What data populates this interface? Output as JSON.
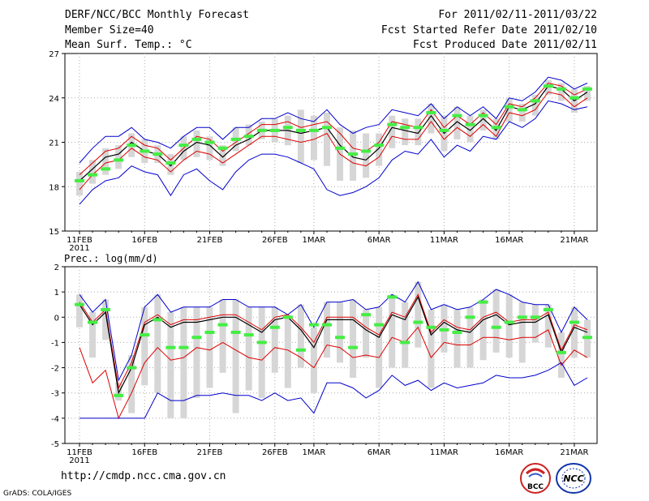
{
  "header": {
    "title": "DERF/NCC/BCC Monthly Forecast",
    "member_size": "Member Size=40",
    "variable": "Mean Surf. Temp.: °C",
    "period": "For 2011/02/11-2011/03/22",
    "started": "Fcst Started Refer Date 2011/02/10",
    "produced": "Fcst Produced Date 2011/02/11"
  },
  "footer": {
    "url": "http://cmdp.ncc.cma.gov.cn",
    "credit": "GrADS: COLA/IGES",
    "logo_left_text": "BCC",
    "logo_right_text": "NCC"
  },
  "colors": {
    "envelope": "#0000cc",
    "spread": "#dd0000",
    "ensemble_mean": "#000000",
    "box": "#d6d6d6",
    "member_mark": "#44ee44",
    "grid": "#aaaaaa"
  },
  "chart_data": [
    {
      "type": "line",
      "title": "Mean Surf. Temp.: °C",
      "x_tick_labels": [
        "11FEB",
        "16FEB",
        "21FEB",
        "26FEB",
        "1MAR",
        "6MAR",
        "11MAR",
        "16MAR",
        "21MAR"
      ],
      "x_tick_days": [
        0,
        5,
        10,
        15,
        18,
        23,
        28,
        33,
        38
      ],
      "x_sub_label": "2011",
      "xlim": [
        0,
        39
      ],
      "ylim": [
        15,
        27
      ],
      "y_ticks": [
        15,
        18,
        21,
        24,
        27
      ],
      "grid": true,
      "series": [
        {
          "name": "max",
          "values": [
            19.6,
            20.6,
            21.4,
            21.4,
            22.0,
            21.2,
            21.0,
            20.6,
            21.4,
            22.0,
            22.0,
            21.2,
            22.0,
            22.0,
            22.6,
            22.6,
            23.0,
            22.6,
            22.4,
            23.2,
            22.2,
            21.6,
            22.0,
            22.2,
            23.2,
            23.0,
            22.8,
            23.6,
            22.6,
            23.4,
            22.8,
            23.4,
            22.6,
            24.0,
            23.8,
            24.4,
            25.4,
            25.2,
            24.6,
            25.0
          ]
        },
        {
          "name": "upper",
          "values": [
            18.8,
            19.6,
            20.4,
            20.6,
            21.4,
            20.8,
            20.6,
            19.8,
            20.6,
            21.4,
            21.2,
            20.4,
            21.0,
            21.6,
            22.2,
            22.2,
            22.4,
            22.0,
            22.2,
            22.4,
            21.6,
            20.6,
            20.4,
            21.0,
            22.4,
            22.2,
            22.0,
            23.2,
            22.0,
            22.8,
            22.2,
            23.0,
            22.2,
            23.6,
            23.4,
            24.0,
            25.0,
            24.8,
            24.2,
            24.6
          ]
        },
        {
          "name": "mean",
          "values": [
            18.4,
            19.2,
            20.0,
            20.2,
            21.0,
            20.4,
            20.2,
            19.4,
            20.4,
            21.0,
            20.8,
            20.0,
            20.8,
            21.2,
            21.8,
            21.8,
            21.8,
            21.6,
            21.8,
            22.0,
            20.8,
            20.0,
            19.8,
            20.6,
            22.0,
            21.8,
            21.6,
            22.8,
            21.6,
            22.4,
            21.8,
            22.6,
            21.8,
            23.4,
            23.2,
            23.6,
            24.8,
            24.6,
            23.8,
            24.4
          ]
        },
        {
          "name": "lower",
          "values": [
            17.8,
            18.8,
            19.6,
            19.8,
            20.6,
            20.0,
            19.8,
            19.0,
            19.8,
            20.4,
            20.2,
            19.6,
            20.2,
            20.8,
            21.4,
            21.4,
            21.2,
            21.0,
            21.2,
            21.6,
            20.2,
            19.6,
            19.4,
            20.0,
            21.4,
            21.2,
            21.2,
            22.4,
            21.2,
            22.0,
            21.4,
            22.2,
            21.4,
            23.0,
            22.8,
            23.2,
            24.4,
            24.2,
            23.4,
            24.0
          ]
        },
        {
          "name": "min",
          "values": [
            16.8,
            17.8,
            18.4,
            18.6,
            19.4,
            19.0,
            18.8,
            17.4,
            18.8,
            19.2,
            18.4,
            17.8,
            19.0,
            19.8,
            20.2,
            20.2,
            20.0,
            19.6,
            19.2,
            17.8,
            17.4,
            17.6,
            18.0,
            18.6,
            19.8,
            20.4,
            20.2,
            21.2,
            20.0,
            20.8,
            20.4,
            21.4,
            21.2,
            22.4,
            22.0,
            22.6,
            23.8,
            23.6,
            23.2,
            23.4
          ]
        }
      ],
      "boxes": [
        [
          17.4,
          19.0
        ],
        [
          18.2,
          19.8
        ],
        [
          18.8,
          20.6
        ],
        [
          19.2,
          20.8
        ],
        [
          20.0,
          21.6
        ],
        [
          19.6,
          21.2
        ],
        [
          19.6,
          20.8
        ],
        [
          18.8,
          20.2
        ],
        [
          19.8,
          21.4
        ],
        [
          20.0,
          21.8
        ],
        [
          19.8,
          21.4
        ],
        [
          19.4,
          20.8
        ],
        [
          20.4,
          22.0
        ],
        [
          20.8,
          22.2
        ],
        [
          21.2,
          22.4
        ],
        [
          21.0,
          22.6
        ],
        [
          20.8,
          22.8
        ],
        [
          19.6,
          23.2
        ],
        [
          19.8,
          22.8
        ],
        [
          19.4,
          23.0
        ],
        [
          18.4,
          22.0
        ],
        [
          18.4,
          21.8
        ],
        [
          18.6,
          21.6
        ],
        [
          19.4,
          21.6
        ],
        [
          20.6,
          22.8
        ],
        [
          20.8,
          22.6
        ],
        [
          20.8,
          22.6
        ],
        [
          21.6,
          23.6
        ],
        [
          20.4,
          22.8
        ],
        [
          21.2,
          23.4
        ],
        [
          21.0,
          22.8
        ],
        [
          21.8,
          23.2
        ],
        [
          21.2,
          22.6
        ],
        [
          22.4,
          24.0
        ],
        [
          22.4,
          23.6
        ],
        [
          22.8,
          24.2
        ],
        [
          24.2,
          25.2
        ],
        [
          23.8,
          25.0
        ],
        [
          23.0,
          24.6
        ],
        [
          23.8,
          24.8
        ]
      ],
      "members": [
        18.4,
        18.8,
        19.2,
        19.8,
        20.8,
        20.4,
        20.2,
        19.6,
        20.8,
        21.2,
        21.0,
        20.6,
        21.2,
        21.4,
        21.8,
        21.8,
        22.0,
        21.8,
        21.8,
        22.0,
        20.6,
        20.2,
        20.4,
        20.8,
        22.2,
        22.0,
        22.0,
        23.0,
        21.8,
        22.8,
        22.2,
        22.8,
        22.0,
        23.4,
        23.2,
        23.8,
        24.8,
        24.6,
        24.0,
        24.6
      ]
    },
    {
      "type": "line",
      "title": "Prec.: log(mm/d)",
      "x_tick_labels": [
        "11FEB",
        "16FEB",
        "21FEB",
        "26FEB",
        "1MAR",
        "6MAR",
        "11MAR",
        "16MAR",
        "21MAR"
      ],
      "x_tick_days": [
        0,
        5,
        10,
        15,
        18,
        23,
        28,
        33,
        38
      ],
      "x_sub_label": "2011",
      "xlim": [
        0,
        39
      ],
      "ylim": [
        -5,
        2
      ],
      "y_ticks": [
        -5,
        -4,
        -3,
        -2,
        -1,
        0,
        1,
        2
      ],
      "grid": true,
      "series": [
        {
          "name": "max",
          "values": [
            0.9,
            0.2,
            0.7,
            -2.5,
            -1.5,
            0.4,
            0.9,
            0.2,
            0.4,
            0.4,
            0.4,
            0.7,
            0.7,
            0.4,
            0.4,
            0.4,
            0.1,
            0.5,
            -0.4,
            0.6,
            0.6,
            0.7,
            0.3,
            0.4,
            0.9,
            0.6,
            1.4,
            0.3,
            0.5,
            0.3,
            0.4,
            0.7,
            1.1,
            0.9,
            0.6,
            0.5,
            0.5,
            -0.6,
            0.4,
            -0.1
          ]
        },
        {
          "name": "upper",
          "values": [
            0.6,
            -0.2,
            0.3,
            -2.8,
            -1.8,
            -0.2,
            0.1,
            -0.3,
            -0.1,
            -0.1,
            0.0,
            0.1,
            0.1,
            -0.2,
            -0.5,
            0.0,
            0.1,
            -0.4,
            -1.0,
            0.0,
            0.0,
            0.0,
            -0.4,
            -0.7,
            0.2,
            0.0,
            0.9,
            -0.6,
            -0.1,
            -0.4,
            -0.5,
            0.0,
            0.2,
            -0.2,
            -0.1,
            -0.1,
            0.2,
            -1.3,
            -0.3,
            -0.5
          ]
        },
        {
          "name": "mean",
          "values": [
            0.5,
            -0.3,
            0.2,
            -3.0,
            -2.0,
            -0.3,
            0.0,
            -0.4,
            -0.2,
            -0.2,
            -0.1,
            0.0,
            0.0,
            -0.3,
            -0.6,
            -0.1,
            0.0,
            -0.5,
            -1.2,
            -0.1,
            -0.1,
            -0.1,
            -0.5,
            -0.8,
            0.1,
            -0.1,
            0.8,
            -0.7,
            -0.2,
            -0.5,
            -0.6,
            -0.1,
            0.1,
            -0.3,
            -0.2,
            -0.2,
            0.1,
            -1.4,
            -0.4,
            -0.6
          ]
        },
        {
          "name": "lower",
          "values": [
            -1.2,
            -2.6,
            -2.1,
            -4.0,
            -3.0,
            -1.8,
            -1.2,
            -1.7,
            -1.6,
            -1.2,
            -1.3,
            -1.0,
            -1.3,
            -1.6,
            -1.7,
            -1.2,
            -1.3,
            -1.6,
            -2.0,
            -1.1,
            -1.2,
            -1.6,
            -1.5,
            -1.6,
            -0.8,
            -1.0,
            -0.4,
            -1.6,
            -1.0,
            -1.1,
            -1.1,
            -0.8,
            -0.8,
            -0.9,
            -0.8,
            -0.8,
            -0.5,
            -1.9,
            -1.3,
            -1.6
          ]
        },
        {
          "name": "min",
          "values": [
            -4.0,
            -4.0,
            -4.0,
            -4.0,
            -4.0,
            -4.0,
            -3.0,
            -3.3,
            -3.3,
            -3.1,
            -3.1,
            -3.0,
            -3.1,
            -3.1,
            -3.3,
            -3.0,
            -3.3,
            -3.2,
            -3.8,
            -2.6,
            -2.6,
            -2.8,
            -3.2,
            -2.9,
            -2.3,
            -2.7,
            -2.5,
            -2.9,
            -2.6,
            -2.8,
            -2.7,
            -2.6,
            -2.3,
            -2.4,
            -2.4,
            -2.3,
            -2.1,
            -1.8,
            -2.7,
            -2.4
          ]
        }
      ],
      "boxes": [
        [
          -0.4,
          0.9
        ],
        [
          -1.6,
          0.2
        ],
        [
          -0.9,
          0.7
        ],
        [
          -3.3,
          -2.6
        ],
        [
          -3.8,
          -1.5
        ],
        [
          -2.7,
          0.4
        ],
        [
          -3.0,
          0.9
        ],
        [
          -4.0,
          0.2
        ],
        [
          -4.0,
          0.4
        ],
        [
          -3.2,
          0.4
        ],
        [
          -2.8,
          0.4
        ],
        [
          -2.2,
          0.7
        ],
        [
          -3.8,
          0.7
        ],
        [
          -2.9,
          0.4
        ],
        [
          -3.2,
          0.4
        ],
        [
          -2.2,
          0.4
        ],
        [
          -2.8,
          0.1
        ],
        [
          -2.0,
          0.5
        ],
        [
          -3.0,
          -0.4
        ],
        [
          -1.6,
          0.6
        ],
        [
          -1.8,
          0.6
        ],
        [
          -2.4,
          0.7
        ],
        [
          -1.6,
          0.3
        ],
        [
          -2.8,
          0.4
        ],
        [
          -2.0,
          0.9
        ],
        [
          -2.0,
          0.6
        ],
        [
          -1.2,
          1.4
        ],
        [
          -2.8,
          0.3
        ],
        [
          -1.4,
          0.5
        ],
        [
          -2.0,
          0.3
        ],
        [
          -2.0,
          0.4
        ],
        [
          -1.7,
          0.7
        ],
        [
          -1.4,
          1.1
        ],
        [
          -1.6,
          0.9
        ],
        [
          -1.8,
          0.6
        ],
        [
          -1.0,
          0.5
        ],
        [
          -1.2,
          0.5
        ],
        [
          -2.4,
          -0.6
        ],
        [
          -1.6,
          0.4
        ],
        [
          -1.6,
          -0.1
        ]
      ],
      "members": [
        0.5,
        -0.2,
        0.3,
        -3.1,
        -2.0,
        -0.7,
        -0.1,
        -1.2,
        -1.2,
        -0.8,
        -0.6,
        -0.3,
        -0.6,
        -0.7,
        -1.0,
        -0.4,
        0.0,
        -1.3,
        -0.3,
        -0.3,
        -0.8,
        -1.2,
        0.1,
        -0.3,
        0.8,
        -1.0,
        -0.2,
        -0.4,
        -0.5,
        -0.6,
        0.0,
        0.6,
        -0.4,
        -0.2,
        0.0,
        0.0,
        0.3,
        -1.4,
        -0.2,
        -0.8
      ]
    }
  ]
}
